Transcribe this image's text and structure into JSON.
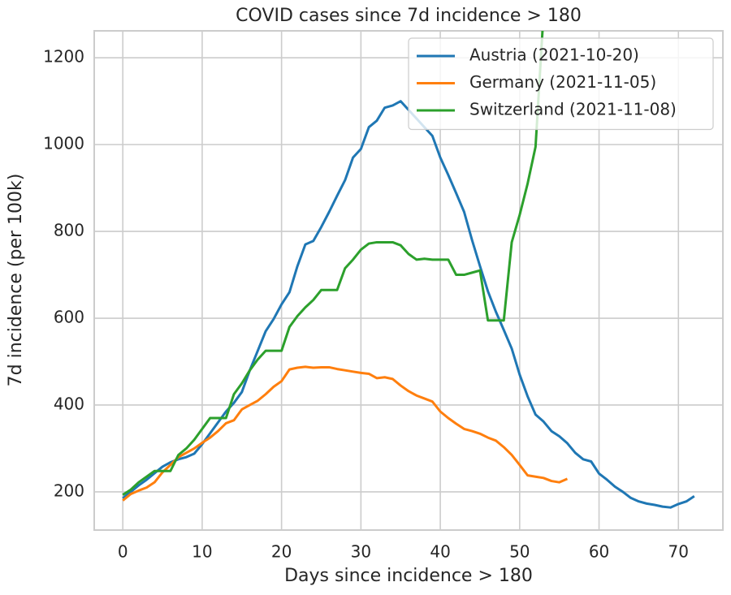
{
  "chart_data": {
    "type": "line",
    "title": "COVID cases since 7d incidence > 180",
    "x_label": "Days since incidence > 180",
    "y_label": "7d incidence (per 100k)",
    "xlim": [
      -3.6,
      75.6
    ],
    "ylim": [
      112,
      1262
    ],
    "xticks": [
      0,
      10,
      20,
      30,
      40,
      50,
      60,
      70
    ],
    "yticks": [
      200,
      400,
      600,
      800,
      1000,
      1200
    ],
    "grid": true,
    "legend": "upper right",
    "series": [
      {
        "name": "Austria (2021-10-20)",
        "color": "#1f77b4",
        "x": [
          0,
          1,
          2,
          3,
          4,
          5,
          6,
          7,
          8,
          9,
          10,
          11,
          12,
          13,
          14,
          15,
          16,
          17,
          18,
          19,
          20,
          21,
          22,
          23,
          24,
          25,
          26,
          27,
          28,
          29,
          30,
          31,
          32,
          33,
          34,
          35,
          36,
          37,
          38,
          39,
          40,
          41,
          42,
          43,
          44,
          45,
          46,
          47,
          48,
          49,
          50,
          51,
          52,
          53,
          54,
          55,
          56,
          57,
          58,
          59,
          60,
          61,
          62,
          63,
          64,
          65,
          66,
          67,
          68,
          69,
          70,
          71,
          72
        ],
        "values": [
          185,
          200,
          215,
          228,
          243,
          258,
          268,
          275,
          280,
          288,
          310,
          335,
          360,
          385,
          405,
          430,
          480,
          525,
          570,
          598,
          632,
          660,
          720,
          770,
          778,
          810,
          845,
          882,
          918,
          970,
          990,
          1040,
          1055,
          1085,
          1090,
          1100,
          1080,
          1060,
          1040,
          1020,
          970,
          930,
          888,
          845,
          780,
          720,
          662,
          615,
          573,
          530,
          470,
          420,
          378,
          362,
          340,
          328,
          312,
          290,
          275,
          270,
          242,
          228,
          212,
          200,
          186,
          178,
          173,
          170,
          166,
          164,
          172,
          178,
          190
        ]
      },
      {
        "name": "Germany (2021-11-05)",
        "color": "#ff7f0e",
        "x": [
          0,
          1,
          2,
          3,
          4,
          5,
          6,
          7,
          8,
          9,
          10,
          11,
          12,
          13,
          14,
          15,
          16,
          17,
          18,
          19,
          20,
          21,
          22,
          23,
          24,
          25,
          26,
          27,
          28,
          29,
          30,
          31,
          32,
          33,
          34,
          35,
          36,
          37,
          38,
          39,
          40,
          41,
          42,
          43,
          44,
          45,
          46,
          47,
          48,
          49,
          50,
          51,
          52,
          53,
          54,
          55,
          56
        ],
        "values": [
          180,
          195,
          203,
          210,
          222,
          245,
          262,
          280,
          290,
          300,
          313,
          325,
          340,
          358,
          365,
          390,
          400,
          410,
          425,
          442,
          455,
          482,
          486,
          488,
          486,
          487,
          487,
          483,
          480,
          477,
          474,
          472,
          462,
          464,
          460,
          445,
          432,
          422,
          415,
          408,
          385,
          370,
          357,
          345,
          340,
          334,
          325,
          318,
          303,
          285,
          262,
          238,
          235,
          232,
          225,
          222,
          230
        ]
      },
      {
        "name": "Switzerland (2021-11-08)",
        "color": "#2ca02c",
        "x": [
          0,
          1,
          2,
          3,
          4,
          5,
          6,
          7,
          8,
          9,
          10,
          11,
          12,
          13,
          14,
          15,
          16,
          17,
          18,
          19,
          20,
          21,
          22,
          23,
          24,
          25,
          26,
          27,
          28,
          29,
          30,
          31,
          32,
          33,
          34,
          35,
          36,
          37,
          38,
          39,
          40,
          41,
          42,
          43,
          44,
          45,
          46,
          47,
          48,
          49,
          50,
          51,
          52,
          53
        ],
        "values": [
          193,
          205,
          222,
          235,
          248,
          248,
          248,
          285,
          300,
          320,
          345,
          370,
          370,
          370,
          425,
          450,
          480,
          505,
          525,
          525,
          525,
          580,
          605,
          625,
          642,
          665,
          665,
          665,
          715,
          735,
          758,
          772,
          775,
          775,
          775,
          768,
          748,
          735,
          737,
          735,
          735,
          735,
          700,
          700,
          705,
          710,
          595,
          595,
          595,
          775,
          838,
          910,
          995,
          1300
        ]
      }
    ]
  }
}
